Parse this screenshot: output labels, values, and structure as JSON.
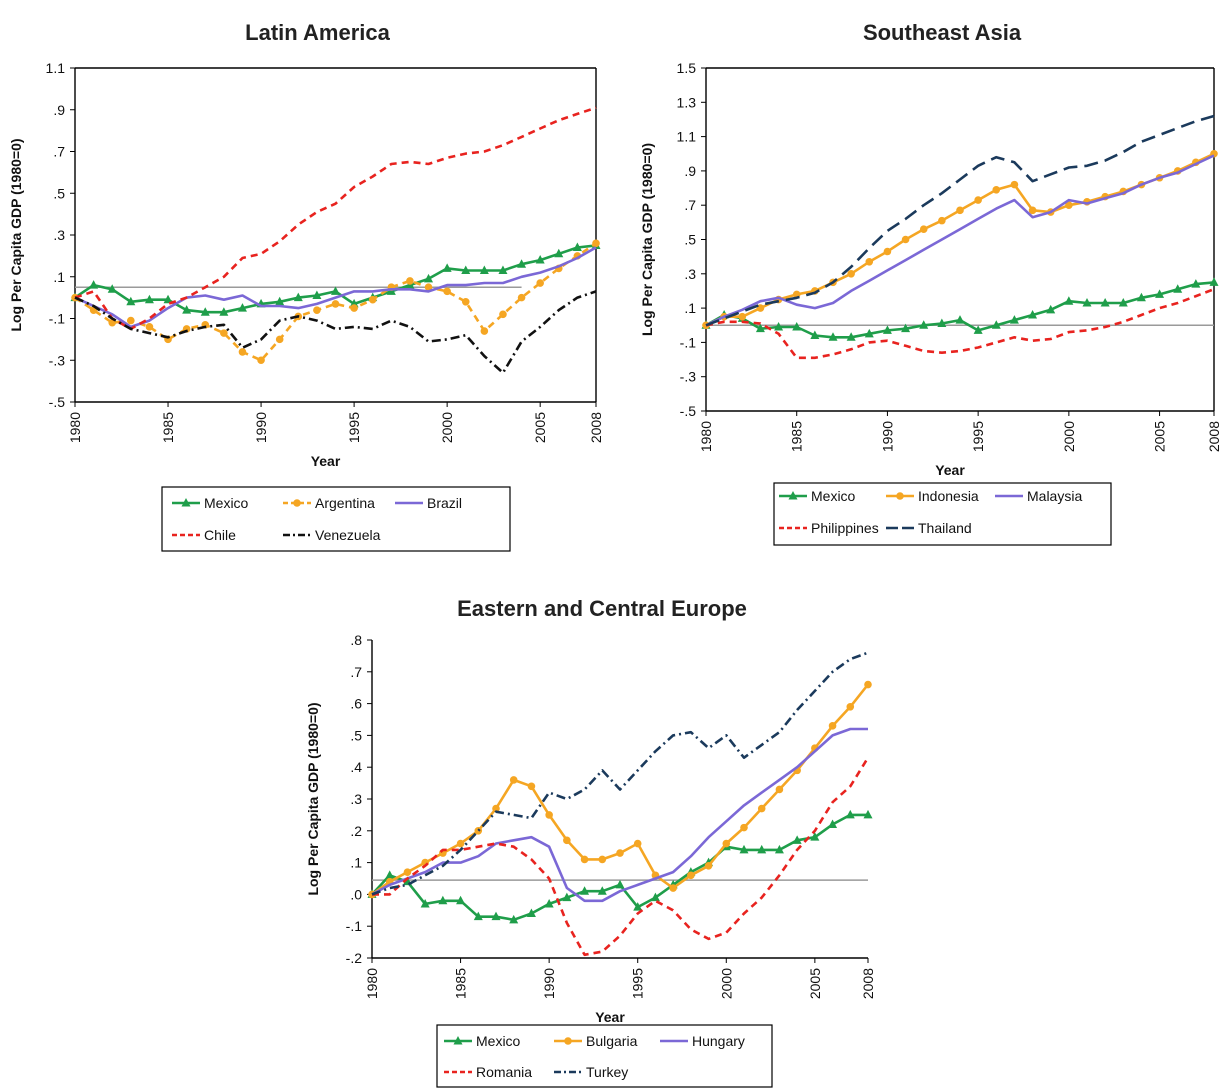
{
  "chart_data": [
    {
      "type": "line",
      "title": "Latin America",
      "xlabel": "Year",
      "ylabel": "Log Per Capita GDP (1980=0)",
      "xlim": [
        1980,
        2008
      ],
      "ylim": [
        -0.5,
        1.1
      ],
      "yticks": [
        -0.5,
        -0.3,
        -0.1,
        0.1,
        0.3,
        0.5,
        0.7,
        0.9,
        1.1
      ],
      "ytick_labels": [
        "-.5",
        "-.3",
        "-.1",
        ".1",
        ".3",
        ".5",
        ".7",
        ".9",
        "1.1"
      ],
      "xticks": [
        1980,
        1985,
        1990,
        1995,
        2000,
        2005,
        2008
      ],
      "xtick_labels": [
        "1980",
        "1985",
        "1990",
        "1995",
        "2000",
        "2005",
        "2008"
      ],
      "reference_line": 0.05,
      "grid": false,
      "legend_position": "bottom",
      "x": [
        1980,
        1981,
        1982,
        1983,
        1984,
        1985,
        1986,
        1987,
        1988,
        1989,
        1990,
        1991,
        1992,
        1993,
        1994,
        1995,
        1996,
        1997,
        1998,
        1999,
        2000,
        2001,
        2002,
        2003,
        2004,
        2005,
        2006,
        2007,
        2008
      ],
      "series": [
        {
          "name": "Mexico",
          "color": "#1f9e4a",
          "style": "solid",
          "marker": "triangle",
          "values": [
            0.0,
            0.06,
            0.04,
            -0.02,
            -0.01,
            -0.01,
            -0.06,
            -0.07,
            -0.07,
            -0.05,
            -0.03,
            -0.02,
            0.0,
            0.01,
            0.03,
            -0.03,
            0.0,
            0.03,
            0.06,
            0.09,
            0.14,
            0.13,
            0.13,
            0.13,
            0.16,
            0.18,
            0.21,
            0.24,
            0.25
          ]
        },
        {
          "name": "Argentina",
          "color": "#f5a623",
          "style": "dash",
          "marker": "circle",
          "values": [
            0.0,
            -0.06,
            -0.12,
            -0.11,
            -0.14,
            -0.2,
            -0.15,
            -0.13,
            -0.17,
            -0.26,
            -0.3,
            -0.2,
            -0.09,
            -0.06,
            -0.03,
            -0.05,
            -0.01,
            0.05,
            0.08,
            0.05,
            0.03,
            -0.02,
            -0.16,
            -0.08,
            0.0,
            0.07,
            0.14,
            0.2,
            0.26
          ]
        },
        {
          "name": "Brazil",
          "color": "#7b68d6",
          "style": "solid",
          "marker": "none",
          "values": [
            0.0,
            -0.04,
            -0.08,
            -0.14,
            -0.11,
            -0.05,
            0.0,
            0.01,
            -0.01,
            0.01,
            -0.04,
            -0.04,
            -0.05,
            -0.03,
            0.0,
            0.03,
            0.03,
            0.04,
            0.04,
            0.03,
            0.06,
            0.06,
            0.07,
            0.07,
            0.1,
            0.12,
            0.15,
            0.19,
            0.24
          ]
        },
        {
          "name": "Chile",
          "color": "#e8231f",
          "style": "dash",
          "marker": "none",
          "values": [
            0.0,
            0.03,
            -0.1,
            -0.15,
            -0.1,
            -0.03,
            0.0,
            0.05,
            0.1,
            0.19,
            0.21,
            0.27,
            0.35,
            0.41,
            0.45,
            0.53,
            0.58,
            0.64,
            0.65,
            0.64,
            0.67,
            0.69,
            0.7,
            0.73,
            0.77,
            0.81,
            0.85,
            0.88,
            0.91
          ]
        },
        {
          "name": "Venezuela",
          "color": "#111111",
          "style": "dashdot",
          "marker": "none",
          "values": [
            0.0,
            -0.04,
            -0.1,
            -0.15,
            -0.17,
            -0.19,
            -0.16,
            -0.14,
            -0.13,
            -0.24,
            -0.2,
            -0.11,
            -0.09,
            -0.11,
            -0.15,
            -0.14,
            -0.15,
            -0.11,
            -0.14,
            -0.21,
            -0.2,
            -0.18,
            -0.28,
            -0.36,
            -0.21,
            -0.14,
            -0.06,
            0.0,
            0.03
          ]
        }
      ]
    },
    {
      "type": "line",
      "title": "Southeast Asia",
      "xlabel": "Year",
      "ylabel": "Log Per Capita GDP (1980=0)",
      "xlim": [
        1980,
        2008
      ],
      "ylim": [
        -0.5,
        1.5
      ],
      "yticks": [
        -0.5,
        -0.3,
        -0.1,
        0.1,
        0.3,
        0.5,
        0.7,
        0.9,
        1.1,
        1.3,
        1.5
      ],
      "ytick_labels": [
        "-.5",
        "-.3",
        "-.1",
        ".1",
        ".3",
        ".5",
        ".7",
        ".9",
        "1.1",
        "1.3",
        "1.5"
      ],
      "xticks": [
        1980,
        1985,
        1990,
        1995,
        2000,
        2005,
        2008
      ],
      "xtick_labels": [
        "1980",
        "1985",
        "1990",
        "1995",
        "2000",
        "2005",
        "2008"
      ],
      "reference_line": 0.0,
      "grid": false,
      "legend_position": "bottom",
      "x": [
        1980,
        1981,
        1982,
        1983,
        1984,
        1985,
        1986,
        1987,
        1988,
        1989,
        1990,
        1991,
        1992,
        1993,
        1994,
        1995,
        1996,
        1997,
        1998,
        1999,
        2000,
        2001,
        2002,
        2003,
        2004,
        2005,
        2006,
        2007,
        2008
      ],
      "series": [
        {
          "name": "Mexico",
          "color": "#1f9e4a",
          "style": "solid",
          "marker": "triangle",
          "values": [
            0.0,
            0.06,
            0.04,
            -0.02,
            -0.01,
            -0.01,
            -0.06,
            -0.07,
            -0.07,
            -0.05,
            -0.03,
            -0.02,
            0.0,
            0.01,
            0.03,
            -0.03,
            0.0,
            0.03,
            0.06,
            0.09,
            0.14,
            0.13,
            0.13,
            0.13,
            0.16,
            0.18,
            0.21,
            0.24,
            0.25
          ]
        },
        {
          "name": "Indonesia",
          "color": "#f5a623",
          "style": "solid",
          "marker": "circle",
          "values": [
            0.0,
            0.05,
            0.05,
            0.1,
            0.15,
            0.18,
            0.2,
            0.25,
            0.3,
            0.37,
            0.43,
            0.5,
            0.56,
            0.61,
            0.67,
            0.73,
            0.79,
            0.82,
            0.67,
            0.66,
            0.7,
            0.72,
            0.75,
            0.78,
            0.82,
            0.86,
            0.9,
            0.95,
            1.0
          ]
        },
        {
          "name": "Malaysia",
          "color": "#7b68d6",
          "style": "solid",
          "marker": "none",
          "values": [
            0.0,
            0.05,
            0.09,
            0.14,
            0.16,
            0.12,
            0.1,
            0.13,
            0.2,
            0.26,
            0.32,
            0.38,
            0.44,
            0.5,
            0.56,
            0.62,
            0.68,
            0.73,
            0.63,
            0.66,
            0.73,
            0.71,
            0.74,
            0.77,
            0.82,
            0.86,
            0.89,
            0.94,
            0.99
          ]
        },
        {
          "name": "Philippines",
          "color": "#e8231f",
          "style": "dash",
          "marker": "none",
          "values": [
            0.0,
            0.02,
            0.02,
            0.01,
            -0.05,
            -0.19,
            -0.19,
            -0.17,
            -0.14,
            -0.1,
            -0.09,
            -0.12,
            -0.15,
            -0.16,
            -0.15,
            -0.13,
            -0.1,
            -0.07,
            -0.09,
            -0.08,
            -0.04,
            -0.03,
            -0.01,
            0.02,
            0.06,
            0.1,
            0.13,
            0.17,
            0.21
          ]
        },
        {
          "name": "Thailand",
          "color": "#1b3a5c",
          "style": "longdash",
          "marker": "none",
          "values": [
            0.0,
            0.04,
            0.08,
            0.12,
            0.14,
            0.16,
            0.19,
            0.25,
            0.34,
            0.45,
            0.55,
            0.62,
            0.7,
            0.77,
            0.85,
            0.93,
            0.98,
            0.95,
            0.84,
            0.88,
            0.92,
            0.93,
            0.96,
            1.01,
            1.07,
            1.11,
            1.15,
            1.19,
            1.22
          ]
        }
      ]
    },
    {
      "type": "line",
      "title": "Eastern and Central Europe",
      "xlabel": "Year",
      "ylabel": "Log Per Capita GDP (1980=0)",
      "xlim": [
        1980,
        2008
      ],
      "ylim": [
        -0.2,
        0.8
      ],
      "yticks": [
        -0.2,
        -0.1,
        0.0,
        0.1,
        0.2,
        0.3,
        0.4,
        0.5,
        0.6,
        0.7,
        0.8
      ],
      "ytick_labels": [
        "-.2",
        "-.1",
        ".0",
        ".1",
        ".2",
        ".3",
        ".4",
        ".5",
        ".6",
        ".7",
        ".8"
      ],
      "xticks": [
        1980,
        1985,
        1990,
        1995,
        2000,
        2005,
        2008
      ],
      "xtick_labels": [
        "1980",
        "1985",
        "1990",
        "1995",
        "2000",
        "2005",
        "2008"
      ],
      "reference_line": 0.045,
      "grid": false,
      "legend_position": "bottom",
      "x": [
        1980,
        1981,
        1982,
        1983,
        1984,
        1985,
        1986,
        1987,
        1988,
        1989,
        1990,
        1991,
        1992,
        1993,
        1994,
        1995,
        1996,
        1997,
        1998,
        1999,
        2000,
        2001,
        2002,
        2003,
        2004,
        2005,
        2006,
        2007,
        2008
      ],
      "series": [
        {
          "name": "Mexico",
          "color": "#1f9e4a",
          "style": "solid",
          "marker": "triangle",
          "values": [
            0.0,
            0.06,
            0.04,
            -0.03,
            -0.02,
            -0.02,
            -0.07,
            -0.07,
            -0.08,
            -0.06,
            -0.03,
            -0.01,
            0.01,
            0.01,
            0.03,
            -0.04,
            -0.01,
            0.03,
            0.07,
            0.1,
            0.15,
            0.14,
            0.14,
            0.14,
            0.17,
            0.18,
            0.22,
            0.25,
            0.25
          ]
        },
        {
          "name": "Bulgaria",
          "color": "#f5a623",
          "style": "solid",
          "marker": "circle",
          "values": [
            0.0,
            0.04,
            0.07,
            0.1,
            0.13,
            0.16,
            0.2,
            0.27,
            0.36,
            0.34,
            0.25,
            0.17,
            0.11,
            0.11,
            0.13,
            0.16,
            0.06,
            0.02,
            0.06,
            0.09,
            0.16,
            0.21,
            0.27,
            0.33,
            0.39,
            0.46,
            0.53,
            0.59,
            0.66
          ]
        },
        {
          "name": "Hungary",
          "color": "#7b68d6",
          "style": "solid",
          "marker": "none",
          "values": [
            0.0,
            0.03,
            0.05,
            0.07,
            0.1,
            0.1,
            0.12,
            0.16,
            0.17,
            0.18,
            0.15,
            0.02,
            -0.02,
            -0.02,
            0.01,
            0.03,
            0.05,
            0.07,
            0.12,
            0.18,
            0.23,
            0.28,
            0.32,
            0.36,
            0.4,
            0.45,
            0.5,
            0.52,
            0.52
          ]
        },
        {
          "name": "Romania",
          "color": "#e8231f",
          "style": "dash",
          "marker": "none",
          "values": [
            0.0,
            0.0,
            0.05,
            0.09,
            0.14,
            0.14,
            0.15,
            0.16,
            0.15,
            0.11,
            0.05,
            -0.09,
            -0.19,
            -0.18,
            -0.13,
            -0.06,
            -0.02,
            -0.05,
            -0.11,
            -0.14,
            -0.12,
            -0.06,
            -0.01,
            0.06,
            0.14,
            0.2,
            0.29,
            0.34,
            0.43
          ]
        },
        {
          "name": "Turkey",
          "color": "#1b3a5c",
          "style": "dashdot",
          "marker": "none",
          "values": [
            0.0,
            0.02,
            0.03,
            0.06,
            0.09,
            0.14,
            0.2,
            0.26,
            0.25,
            0.24,
            0.32,
            0.3,
            0.33,
            0.39,
            0.33,
            0.39,
            0.45,
            0.5,
            0.51,
            0.46,
            0.5,
            0.43,
            0.47,
            0.51,
            0.58,
            0.64,
            0.7,
            0.74,
            0.76
          ]
        }
      ]
    }
  ]
}
